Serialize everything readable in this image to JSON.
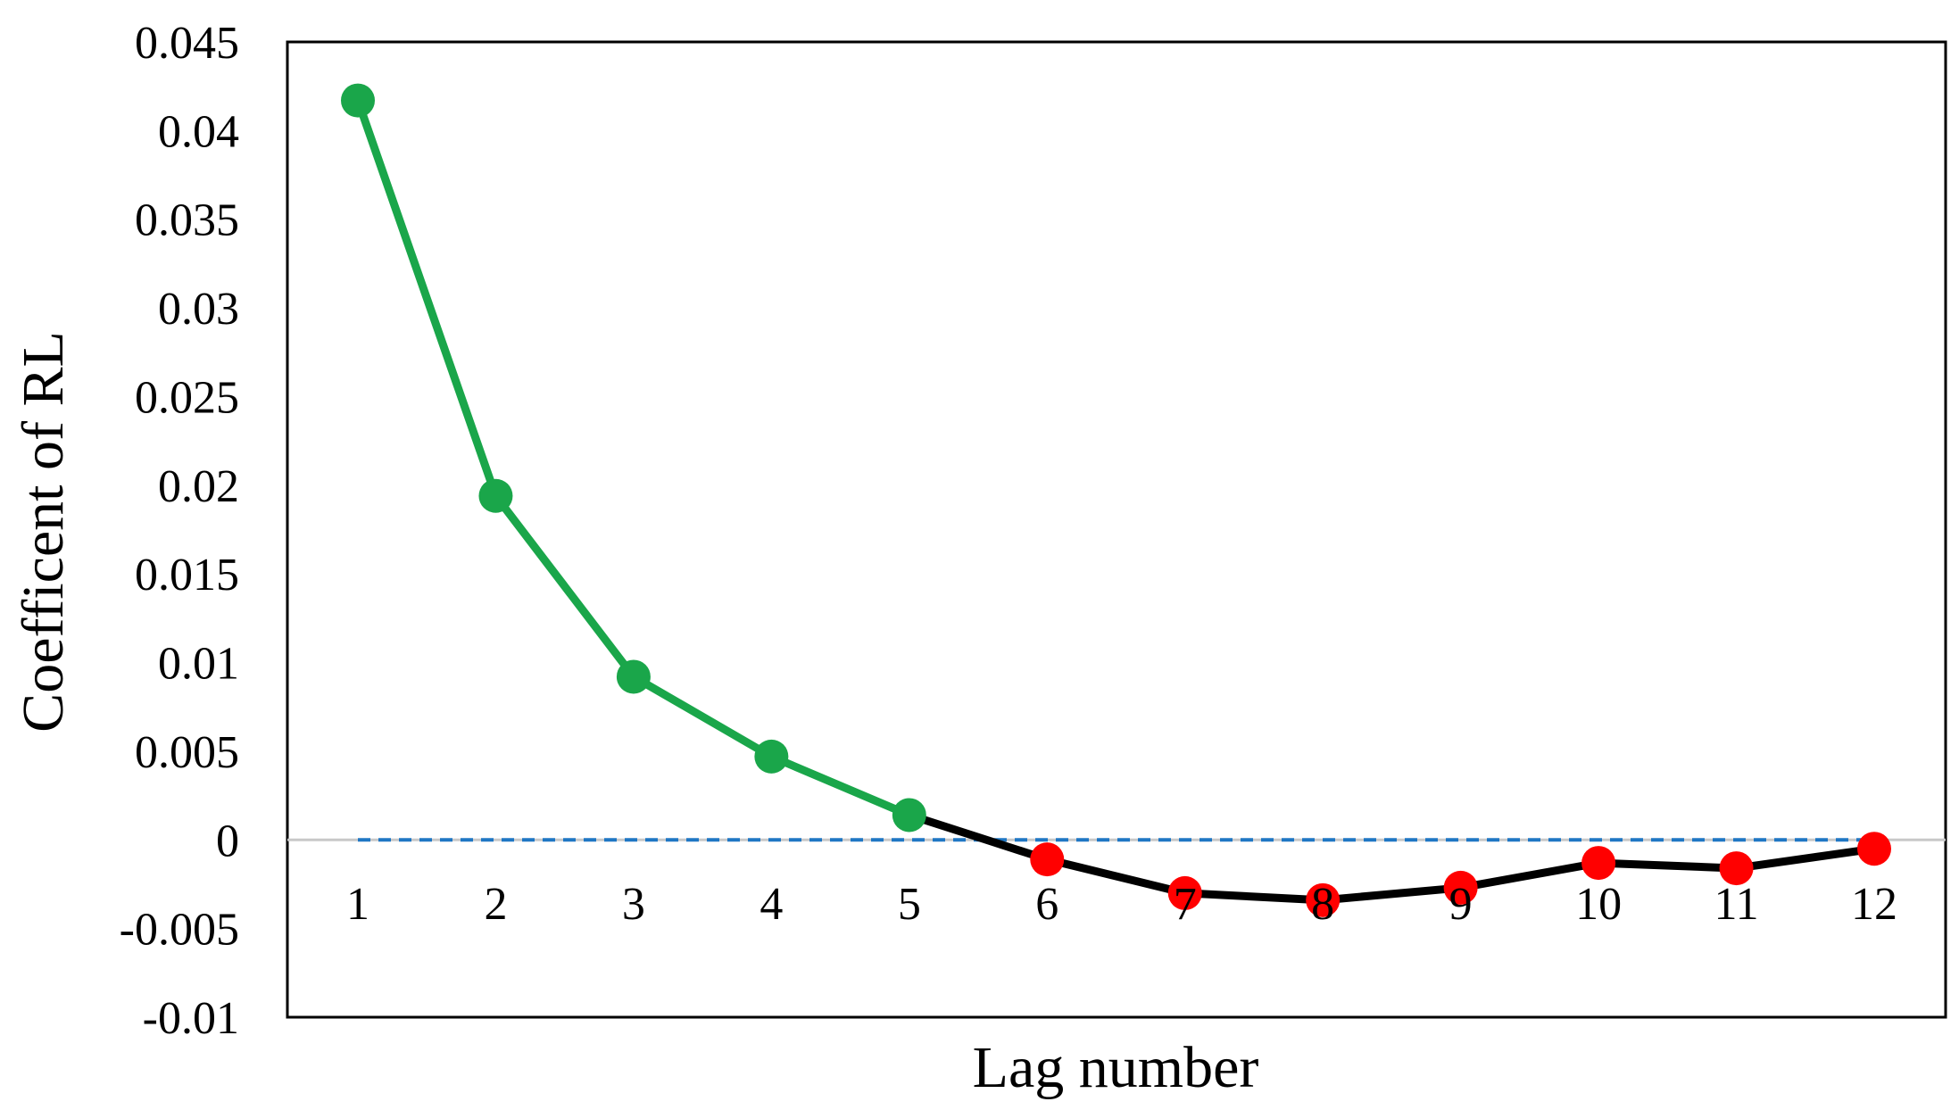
{
  "chart_data": {
    "type": "line",
    "xlabel": "Lag number",
    "ylabel": "Coefficent of RL",
    "ylim": [
      -0.01,
      0.045
    ],
    "yticks": [
      "-0.01",
      "-0.005",
      "0",
      "0.005",
      "0.01",
      "0.015",
      "0.02",
      "0.025",
      "0.03",
      "0.035",
      "0.04",
      "0.045"
    ],
    "categories": [
      "1",
      "2",
      "3",
      "4",
      "5",
      "6",
      "7",
      "8",
      "9",
      "10",
      "11",
      "12"
    ],
    "values": [
      0.0417,
      0.0194,
      0.0092,
      0.0047,
      0.0014,
      -0.0011,
      -0.003,
      -0.0034,
      -0.0027,
      -0.0013,
      -0.0016,
      -0.0005
    ],
    "grid": false,
    "legend": "none",
    "zero_line": {
      "style": "dashed",
      "color": "#1f77c4"
    },
    "colors": {
      "positive_line": "#1aa64a",
      "positive_marker": "#1aa64a",
      "negative_line": "#000000",
      "negative_marker": "#ff0000",
      "axis_line": "#c8c8c8",
      "frame": "#000000"
    }
  }
}
